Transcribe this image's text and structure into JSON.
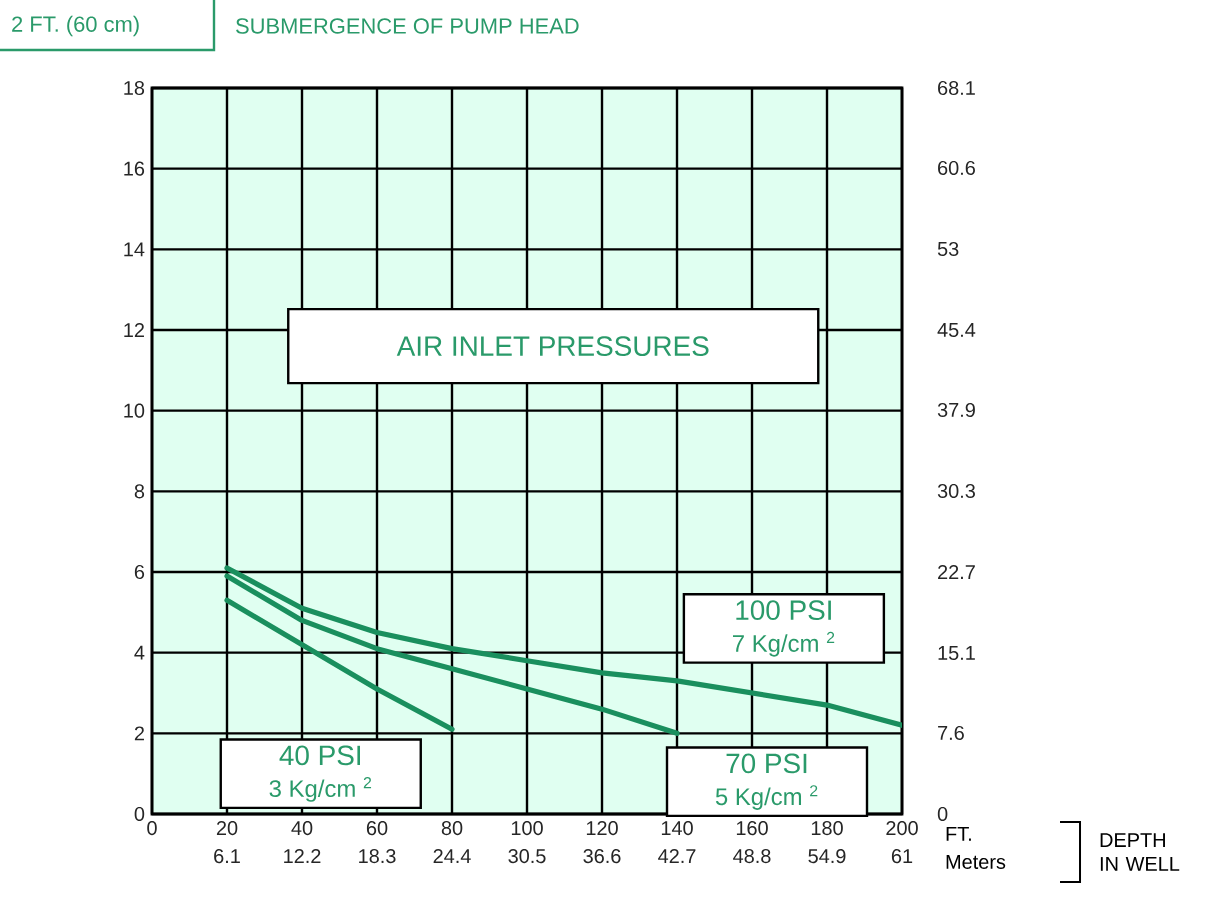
{
  "chart_data": {
    "type": "line",
    "title": "SUBMERGENCE OF PUMP HEAD",
    "legend_title": "AIR INLET PRESSURES",
    "xlabel": "FT.",
    "x2label": "Meters",
    "annotations": [
      "2 FT. (60 cm)",
      "3 Kg/cm $^{2}$",
      "5 Kg/cm $^{2}$",
      "7 Kg/cm $^{2}$",
      "DEPTH IN WELL"
    ],
    "series": [
      {
        "name": "40 PSI",
        "color": "#1a8f5e",
        "x": [
          20,
          40,
          60,
          80
        ],
        "values": [
          5.3,
          4.2,
          3.1,
          2.1
        ]
      },
      {
        "name": "70 PSI",
        "color": "#1a8f5e",
        "x": [
          20,
          40,
          60,
          80,
          100,
          120,
          140
        ],
        "values": [
          5.9,
          4.8,
          4.1,
          3.6,
          3.1,
          2.6,
          2.0
        ]
      },
      {
        "name": "100 PSI",
        "color": "#1a8f5e",
        "x": [
          20,
          40,
          60,
          80,
          100,
          120,
          140,
          160,
          180,
          200
        ],
        "values": [
          6.1,
          5.1,
          4.5,
          4.1,
          3.8,
          3.5,
          3.3,
          3.0,
          2.7,
          2.2
        ]
      }
    ],
    "xlim": [
      0,
      200
    ],
    "xticks": [
      0,
      20,
      40,
      60,
      80,
      100,
      120,
      140,
      160,
      180,
      200
    ],
    "x2lim": [
      0,
      61
    ],
    "x2ticks": [
      6.1,
      12.2,
      18.3,
      24.4,
      30.5,
      36.6,
      42.7,
      48.8,
      54.9,
      61
    ],
    "ylim": [
      0,
      18
    ],
    "yticks": [
      0,
      2,
      4,
      6,
      8,
      10,
      12,
      14,
      16,
      18
    ],
    "y2lim": [
      0,
      68.1
    ],
    "y2ticks": [
      0,
      7.6,
      15.1,
      22.7,
      30.3,
      37.9,
      45.4,
      53,
      60.6,
      68.1
    ],
    "grid": true
  }
}
